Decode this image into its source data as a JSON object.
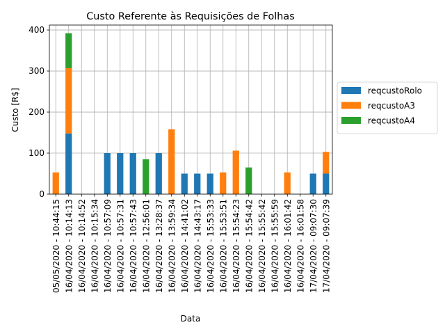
{
  "chart_data": {
    "type": "bar",
    "stacked": true,
    "title": "Custo Referente às Requisições de Folhas",
    "xlabel": "Data",
    "ylabel": "Custo [R$]",
    "ylim": [
      0,
      412
    ],
    "yticks": [
      0,
      100,
      200,
      300,
      400
    ],
    "grid": true,
    "legend_position": "right",
    "categories": [
      "05/05/2020 - 10:44:15",
      "16/04/2020 - 10:14:13",
      "16/04/2020 - 10:14:52",
      "16/04/2020 - 10:15:34",
      "16/04/2020 - 10:57:09",
      "16/04/2020 - 10:57:31",
      "16/04/2020 - 10:57:43",
      "16/04/2020 - 12:56:01",
      "16/04/2020 - 13:28:37",
      "16/04/2020 - 13:59:34",
      "16/04/2020 - 14:41:02",
      "16/04/2020 - 14:43:17",
      "16/04/2020 - 15:53:33",
      "16/04/2020 - 15:53:51",
      "16/04/2020 - 15:54:23",
      "16/04/2020 - 15:54:42",
      "16/04/2020 - 15:55:42",
      "16/04/2020 - 15:55:59",
      "16/04/2020 - 16:01:42",
      "16/04/2020 - 16:01:58",
      "17/04/2020 - 09:07:30",
      "17/04/2020 - 09:07:39"
    ],
    "series": [
      {
        "name": "reqcustoRolo",
        "color": "#1f77b4",
        "values": [
          0,
          148,
          0,
          0,
          100,
          100,
          100,
          0,
          100,
          0,
          50,
          50,
          50,
          0,
          0,
          0,
          0,
          0,
          0,
          0,
          50,
          50
        ]
      },
      {
        "name": "reqcustoA3",
        "color": "#ff7f0e",
        "values": [
          53,
          159,
          0,
          0,
          0,
          0,
          0,
          0,
          0,
          158,
          0,
          0,
          0,
          53,
          106,
          0,
          0,
          0,
          53,
          0,
          0,
          53
        ]
      },
      {
        "name": "reqcustoA4",
        "color": "#2ca02c",
        "values": [
          0,
          85,
          0,
          0,
          0,
          0,
          0,
          85,
          0,
          0,
          0,
          0,
          0,
          0,
          0,
          65,
          0,
          0,
          0,
          0,
          0,
          0
        ]
      }
    ]
  }
}
